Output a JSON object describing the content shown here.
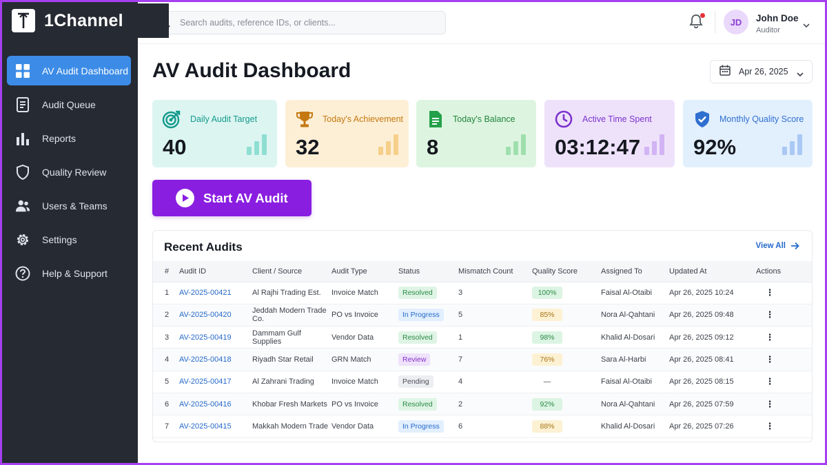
{
  "app": {
    "name": "1Channel"
  },
  "sidebar": {
    "items": [
      {
        "label": "AV Audit Dashboard",
        "icon": "grid-icon",
        "active": true
      },
      {
        "label": "Audit Queue",
        "icon": "document-icon"
      },
      {
        "label": "Reports",
        "icon": "bar-chart-icon"
      },
      {
        "label": "Quality Review",
        "icon": "shield-icon"
      },
      {
        "label": "Users & Teams",
        "icon": "users-icon"
      },
      {
        "label": "Settings",
        "icon": "gear-icon"
      },
      {
        "label": "Help & Support",
        "icon": "help-icon"
      }
    ]
  },
  "topbar": {
    "search_placeholder": "Search audits, reference IDs, or clients...",
    "notification_unread": true,
    "user": {
      "initials": "JD",
      "name": "John Doe",
      "role": "Auditor"
    }
  },
  "main": {
    "title": "AV Audit Dashboard",
    "date": "Apr 26, 2025",
    "cards": [
      {
        "title": "Daily Audit Target",
        "value": "40",
        "icon": "target-icon",
        "bg": "#dcf5f1",
        "accent": "#139a8c"
      },
      {
        "title": "Today's Achievement",
        "value": "32",
        "icon": "trophy-icon",
        "bg": "#fdefd6",
        "accent": "#c4780f"
      },
      {
        "title": "Today's Balance",
        "value": "8",
        "icon": "sheet-icon",
        "bg": "#ddf5e0",
        "accent": "#23a14a"
      },
      {
        "title": "Active Time Spent",
        "value": "03:12:47",
        "icon": "clock-icon",
        "bg": "#eee2fb",
        "accent": "#7c33cc"
      },
      {
        "title": "Monthly Quality Score",
        "value": "92%",
        "icon": "shield-check-icon",
        "bg": "#e2effd",
        "accent": "#2f6fd0"
      }
    ],
    "start_button": "Start AV Audit"
  },
  "recent": {
    "title": "Recent Audits",
    "view_all": "View All",
    "columns": [
      "#",
      "Audit ID",
      "Client / Source",
      "Audit Type",
      "Status",
      "Mismatch Count",
      "Quality Score",
      "Assigned To",
      "Updated At",
      "Actions"
    ],
    "rows": [
      {
        "num": "1",
        "id": "AV-2025-00421",
        "client": "Al Rajhi Trading Est.",
        "type": "Invoice Match",
        "status": "Resolved",
        "mismatch": "3",
        "score": "100%",
        "assigned": "Faisal Al-Otaibi",
        "updated": "Apr 26, 2025 10:24"
      },
      {
        "num": "2",
        "id": "AV-2025-00420",
        "client": "Jeddah Modern Trade Co.",
        "type": "PO vs Invoice",
        "status": "In Progress",
        "mismatch": "5",
        "score": "85%",
        "assigned": "Nora Al-Qahtani",
        "updated": "Apr 26, 2025 09:48"
      },
      {
        "num": "3",
        "id": "AV-2025-00419",
        "client": "Dammam Gulf Supplies",
        "type": "Vendor Data",
        "status": "Resolved",
        "mismatch": "1",
        "score": "98%",
        "assigned": "Khalid Al-Dosari",
        "updated": "Apr 26, 2025 09:12"
      },
      {
        "num": "4",
        "id": "AV-2025-00418",
        "client": "Riyadh Star Retail",
        "type": "GRN Match",
        "status": "Review",
        "mismatch": "7",
        "score": "76%",
        "assigned": "Sara Al-Harbi",
        "updated": "Apr 26, 2025 08:41"
      },
      {
        "num": "5",
        "id": "AV-2025-00417",
        "client": "Al Zahrani Trading",
        "type": "Invoice Match",
        "status": "Pending",
        "mismatch": "4",
        "score": "—",
        "assigned": "Faisal Al-Otaibi",
        "updated": "Apr 26, 2025 08:15"
      },
      {
        "num": "6",
        "id": "AV-2025-00416",
        "client": "Khobar Fresh Markets",
        "type": "PO vs Invoice",
        "status": "Resolved",
        "mismatch": "2",
        "score": "92%",
        "assigned": "Nora Al-Qahtani",
        "updated": "Apr 26, 2025 07:59"
      },
      {
        "num": "7",
        "id": "AV-2025-00415",
        "client": "Makkah Modern Trade",
        "type": "Vendor Data",
        "status": "In Progress",
        "mismatch": "6",
        "score": "88%",
        "assigned": "Khalid Al-Dosari",
        "updated": "Apr 26, 2025 07:26"
      }
    ]
  },
  "colors": {
    "accent_purple": "#8a1ee0",
    "active_nav": "#3c8ce7",
    "sidebar_bg": "#262b33",
    "link": "#2569c9"
  }
}
